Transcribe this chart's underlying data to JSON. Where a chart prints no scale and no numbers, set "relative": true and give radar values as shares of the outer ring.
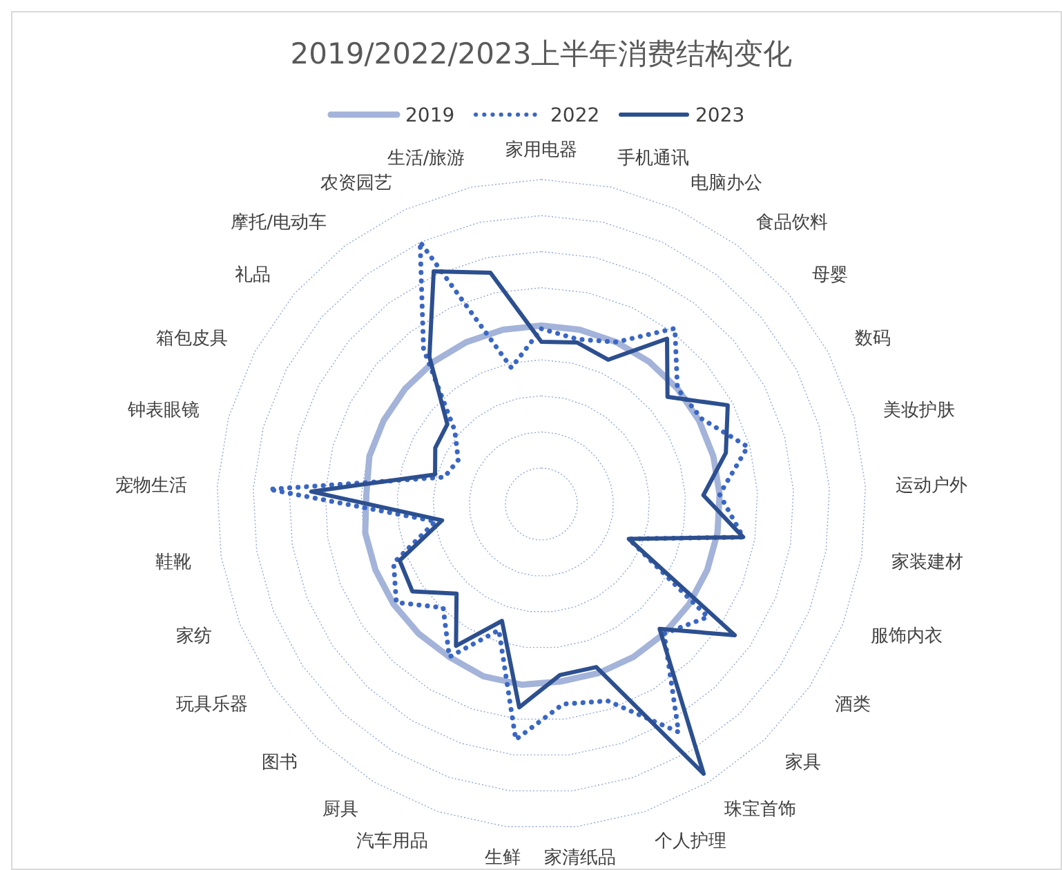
{
  "chart_data": {
    "type": "radar",
    "title": "2019/2022/2023上半年消费结构变化",
    "relative": true,
    "grid": true,
    "legend": "top",
    "marker": "none",
    "categories": [
      "家用电器",
      "手机通讯",
      "电脑办公",
      "食品饮料",
      "母婴",
      "数码",
      "美妆护肤",
      "运动户外",
      "家装建材",
      "服饰内衣",
      "酒类",
      "家具",
      "珠宝首饰",
      "个人护理",
      "家清纸品",
      "生鲜",
      "汽车用品",
      "厨具",
      "图书",
      "玩具乐器",
      "家纺",
      "鞋靴",
      "宠物生活",
      "钟表眼镜",
      "箱包皮具",
      "礼品",
      "摩托/电动车",
      "农资园艺",
      "生活/旅游"
    ],
    "series": [
      {
        "name": "2019",
        "color": "#a3b3d9",
        "line_style": "solid",
        "values": [
          0.55,
          0.55,
          0.55,
          0.55,
          0.55,
          0.55,
          0.55,
          0.55,
          0.55,
          0.55,
          0.55,
          0.55,
          0.55,
          0.55,
          0.55,
          0.56,
          0.56,
          0.55,
          0.55,
          0.55,
          0.55,
          0.55,
          0.54,
          0.55,
          0.55,
          0.55,
          0.55,
          0.55,
          0.55
        ]
      },
      {
        "name": "2022",
        "color": "#3a66c4",
        "line_style": "dotted",
        "values": [
          0.54,
          0.52,
          0.55,
          0.68,
          0.55,
          0.56,
          0.66,
          0.55,
          0.63,
          0.29,
          0.62,
          0.55,
          0.82,
          0.64,
          0.62,
          0.73,
          0.41,
          0.55,
          0.44,
          0.54,
          0.49,
          0.33,
          0.84,
          0.31,
          0.29,
          0.35,
          0.6,
          0.89,
          0.43
        ]
      },
      {
        "name": "2023",
        "color": "#2c4f8f",
        "line_style": "solid",
        "values": [
          0.5,
          0.51,
          0.49,
          0.64,
          0.51,
          0.65,
          0.59,
          0.5,
          0.63,
          0.29,
          0.72,
          0.53,
          0.97,
          0.53,
          0.53,
          0.63,
          0.38,
          0.51,
          0.38,
          0.48,
          0.47,
          0.31,
          0.71,
          0.34,
          0.37,
          0.38,
          0.57,
          0.79,
          0.73
        ]
      }
    ]
  }
}
